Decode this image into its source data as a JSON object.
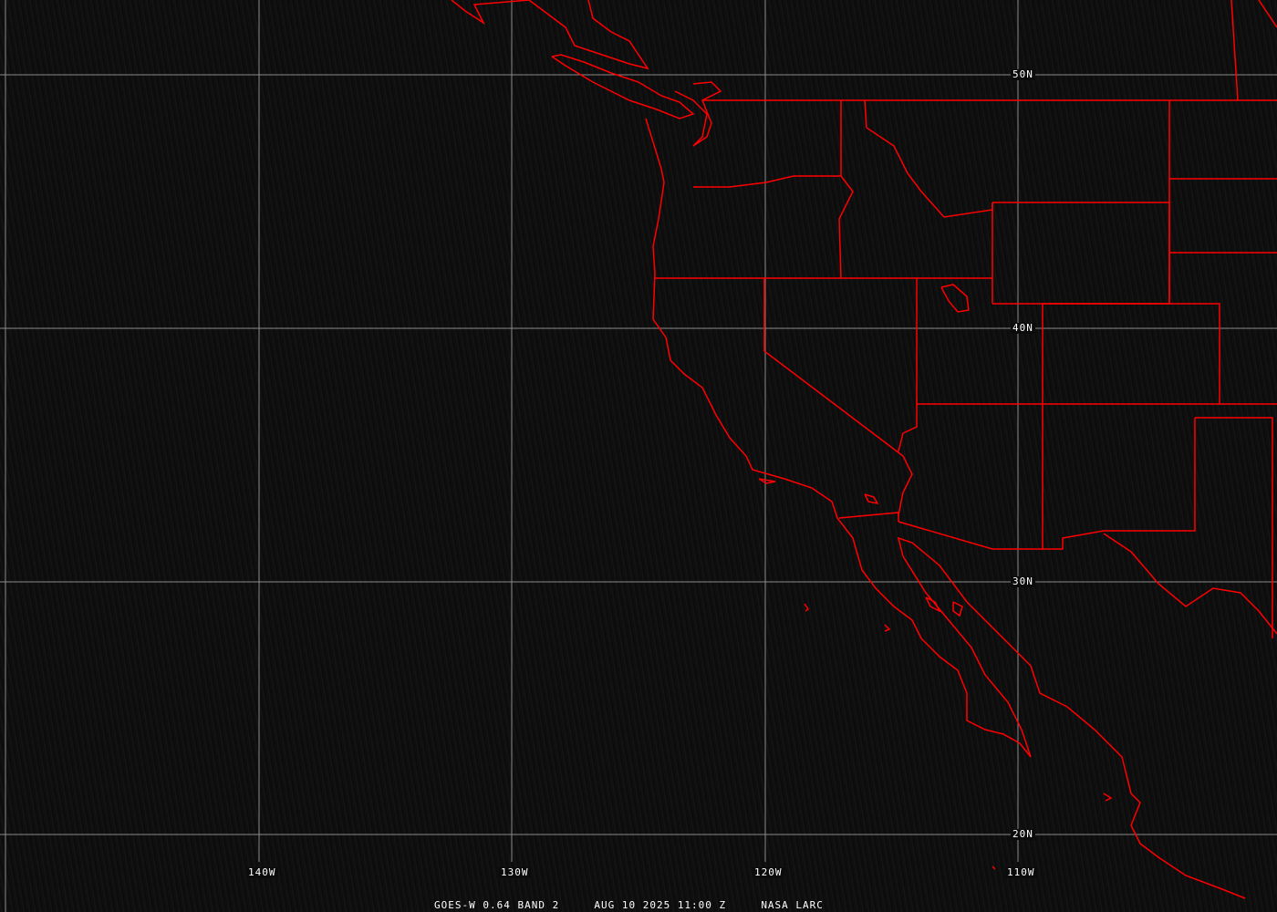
{
  "caption": {
    "satellite": "GOES-W 0.64 BAND 2",
    "datetime": "AUG 10 2025 11:00 Z",
    "source": "NASA LARC"
  },
  "grid": {
    "longitudes": [
      "140W",
      "130W",
      "120W",
      "110W"
    ],
    "latitudes": [
      "50N",
      "40N",
      "30N",
      "20N"
    ]
  },
  "colors": {
    "boundaries": "#ff0000",
    "grid": "#9a9a9a",
    "text": "#ffffff",
    "background": "#0f0f0f"
  }
}
